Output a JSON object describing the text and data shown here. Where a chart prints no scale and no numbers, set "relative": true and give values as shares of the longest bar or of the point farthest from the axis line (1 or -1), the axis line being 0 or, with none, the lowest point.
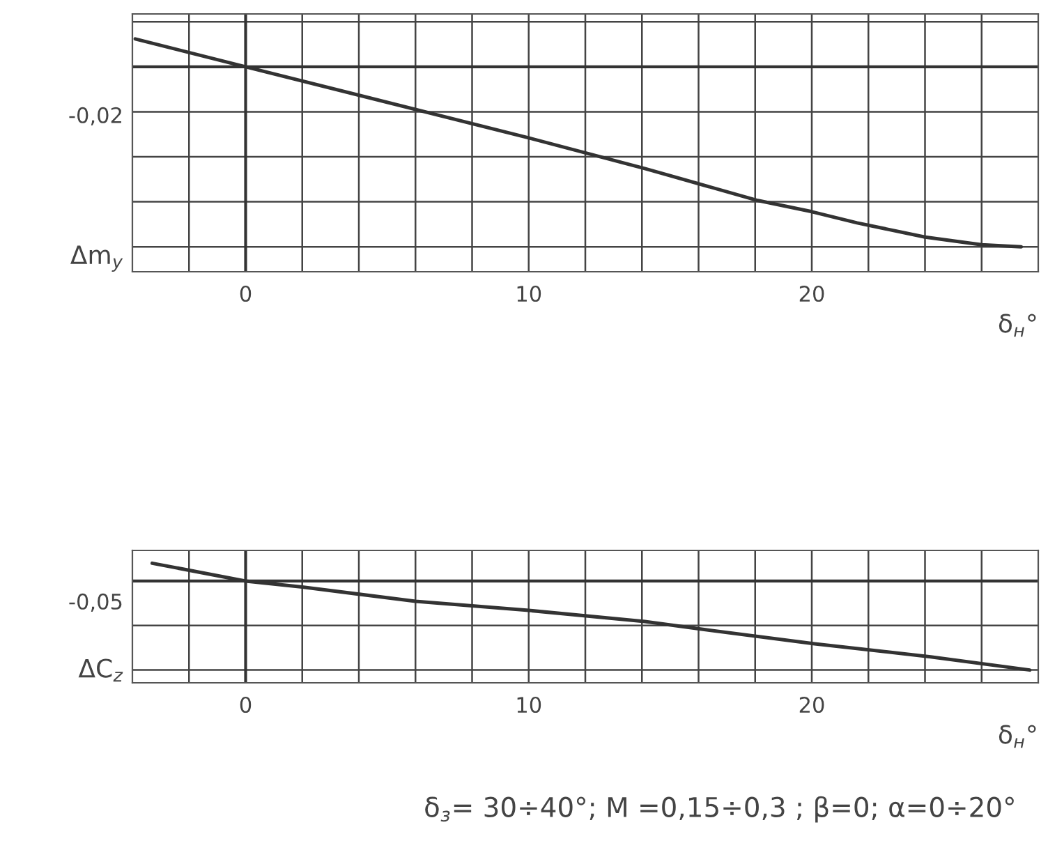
{
  "chart_data": [
    {
      "type": "line",
      "xlabel": "δ$_{н}$°",
      "ylabel": "Δm$_{y}$",
      "grid": true,
      "relative": true,
      "x": [
        -3.9,
        0,
        10,
        14.1,
        18.1,
        20,
        21.6,
        24,
        26,
        27.4
      ],
      "series": [
        {
          "color": "#333333",
          "values": [
            0.155,
            0,
            -0.395,
            -0.565,
            -0.743,
            -0.805,
            -0.867,
            -0.946,
            -0.989,
            -1
          ]
        }
      ],
      "xlim": [
        -4,
        28
      ],
      "xticks": [
        {
          "value": -2,
          "label": null
        },
        0,
        {
          "value": 2,
          "label": null
        },
        {
          "value": 4,
          "label": null
        },
        {
          "value": 6,
          "label": null
        },
        {
          "value": 8,
          "label": null
        },
        10,
        {
          "value": 12,
          "label": null
        },
        {
          "value": 14,
          "label": null
        },
        {
          "value": 16,
          "label": null
        },
        {
          "value": 18,
          "label": null
        },
        20,
        {
          "value": 22,
          "label": null
        },
        {
          "value": 24,
          "label": null
        },
        {
          "value": 26,
          "label": null
        }
      ],
      "annotations": [
        "-0,02"
      ]
    },
    {
      "type": "line",
      "xlabel": "δ$_{н}$°",
      "ylabel": "ΔC$_{z}$",
      "grid": true,
      "relative": true,
      "x": [
        -3.3,
        0,
        2,
        6,
        10,
        14.1,
        16.2,
        20.1,
        24.2,
        27.7
      ],
      "series": [
        {
          "color": "#333333",
          "values": [
            0.2,
            0,
            -0.068,
            -0.227,
            -0.33,
            -0.455,
            -0.545,
            -0.705,
            -0.852,
            -1
          ]
        }
      ],
      "xlim": [
        -4,
        28
      ],
      "xticks": [
        {
          "value": -2,
          "label": null
        },
        0,
        {
          "value": 2,
          "label": null
        },
        {
          "value": 4,
          "label": null
        },
        {
          "value": 6,
          "label": null
        },
        {
          "value": 8,
          "label": null
        },
        10,
        {
          "value": 12,
          "label": null
        },
        {
          "value": 14,
          "label": null
        },
        {
          "value": 16,
          "label": null
        },
        {
          "value": 18,
          "label": null
        },
        20,
        {
          "value": 22,
          "label": null
        },
        {
          "value": 24,
          "label": null
        },
        {
          "value": 26,
          "label": null
        }
      ],
      "annotations": [
        "-0,05",
        "δ$_{з}$= 30÷40°; M =0,15÷0,3 ; β=0; α=0÷20°"
      ]
    }
  ]
}
